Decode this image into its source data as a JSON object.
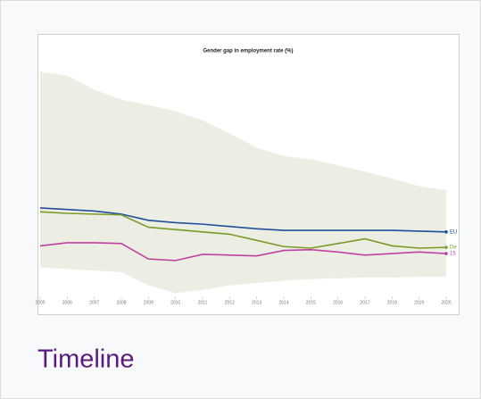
{
  "card": {
    "title": "Timeline"
  },
  "chart_data": {
    "type": "line",
    "title": "Gender gap in employment rate (%)",
    "x": [
      2005,
      2006,
      2007,
      2008,
      2009,
      2010,
      2011,
      2012,
      2013,
      2014,
      2015,
      2016,
      2017,
      2018,
      2019,
      2020
    ],
    "xlim": [
      2005,
      2020
    ],
    "xticks": [
      2005,
      2006,
      2007,
      2008,
      2009,
      2010,
      2011,
      2012,
      2013,
      2014,
      2015,
      2016,
      2017,
      2018,
      2019,
      2020
    ],
    "ylim": [
      0,
      30
    ],
    "band": {
      "color": "#ecede3",
      "upper": [
        28.8,
        28.3,
        26.5,
        25.2,
        24.5,
        23.7,
        22.5,
        20.8,
        19.0,
        17.9,
        17.5,
        16.7,
        15.9,
        15.0,
        14.0,
        13.5
      ],
      "lower": [
        3.5,
        3.3,
        3.1,
        2.9,
        1.2,
        0.2,
        0.6,
        1.2,
        1.5,
        1.8,
        2.0,
        2.1,
        2.2,
        2.2,
        2.3,
        2.3
      ]
    },
    "series": [
      {
        "name": "EU",
        "color": "#1f4e9c",
        "values": [
          11.2,
          11.0,
          10.8,
          10.4,
          9.6,
          9.3,
          9.1,
          8.8,
          8.5,
          8.3,
          8.3,
          8.3,
          8.3,
          8.3,
          8.2,
          8.1
        ]
      },
      {
        "name": "De",
        "color": "#7a9a2a",
        "values": [
          10.7,
          10.5,
          10.4,
          10.3,
          8.7,
          8.4,
          8.1,
          7.8,
          7.0,
          6.2,
          6.0,
          6.6,
          7.2,
          6.3,
          6.0,
          6.1
        ]
      },
      {
        "name": "15",
        "color": "#c040a0",
        "values": [
          6.3,
          6.7,
          6.7,
          6.6,
          4.6,
          4.4,
          5.2,
          5.1,
          5.0,
          5.7,
          5.8,
          5.5,
          5.1,
          5.3,
          5.5,
          5.3
        ]
      }
    ]
  }
}
